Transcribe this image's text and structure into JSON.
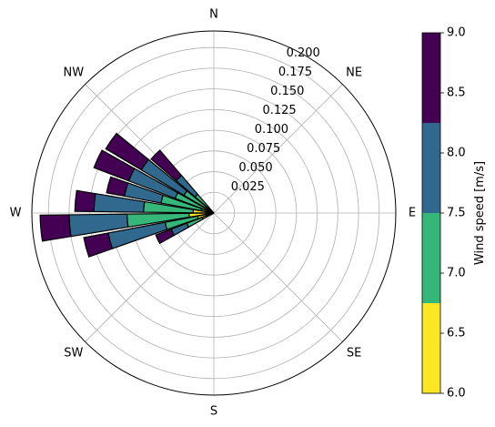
{
  "chart_data": {
    "type": "polar-bar",
    "title": "",
    "directions": [
      "N",
      "NE",
      "E",
      "SE",
      "S",
      "SW",
      "W",
      "NW"
    ],
    "radial_ticks": [
      "0.025",
      "0.050",
      "0.075",
      "0.100",
      "0.125",
      "0.150",
      "0.175",
      "0.200"
    ],
    "radial_range": [
      0,
      0.22
    ],
    "grid": true,
    "bar_edge_color": "#000000",
    "speed_bins": [
      {
        "range": [
          6.0,
          6.75
        ],
        "color": "#fde725"
      },
      {
        "range": [
          6.75,
          7.5
        ],
        "color": "#35b779"
      },
      {
        "range": [
          7.5,
          8.25
        ],
        "color": "#31688e"
      },
      {
        "range": [
          8.25,
          9.0
        ],
        "color": "#440154"
      }
    ],
    "bars": [
      {
        "direction_deg": 245,
        "values": [
          0.015,
          0.02,
          0.02,
          0.02
        ]
      },
      {
        "direction_deg": 255,
        "values": [
          0.02,
          0.04,
          0.07,
          0.03
        ]
      },
      {
        "direction_deg": 265,
        "values": [
          0.03,
          0.075,
          0.07,
          0.035
        ]
      },
      {
        "direction_deg": 275,
        "values": [
          0.025,
          0.06,
          0.06,
          0.023
        ]
      },
      {
        "direction_deg": 285,
        "values": [
          0.015,
          0.05,
          0.045,
          0.022
        ]
      },
      {
        "direction_deg": 295,
        "values": [
          0.01,
          0.04,
          0.06,
          0.045
        ]
      },
      {
        "direction_deg": 305,
        "values": [
          0.012,
          0.03,
          0.06,
          0.05
        ]
      },
      {
        "direction_deg": 315,
        "values": [
          0.01,
          0.02,
          0.03,
          0.04
        ]
      }
    ],
    "colorbar": {
      "label": "Wind speed [m/s]",
      "ticks": [
        "6.0",
        "6.5",
        "7.0",
        "7.5",
        "8.0",
        "8.5",
        "9.0"
      ],
      "range": [
        6.0,
        9.0
      ]
    }
  }
}
